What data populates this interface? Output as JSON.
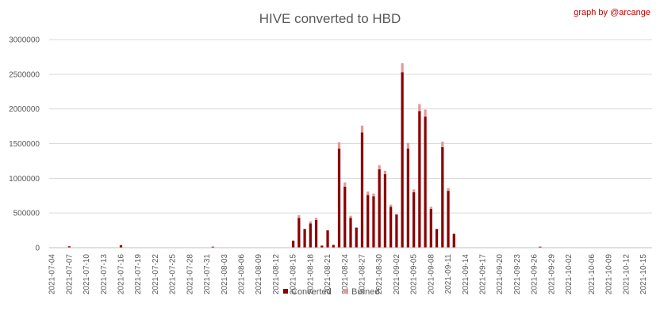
{
  "chart_data": {
    "type": "bar",
    "stacked": true,
    "title": "HIVE converted to HBD",
    "credit": "graph by @arcange",
    "ylim": [
      0,
      3000000
    ],
    "y_ticks": [
      "0",
      "500000",
      "1000000",
      "1500000",
      "2000000",
      "2500000",
      "3000000"
    ],
    "y_tick_values": [
      0,
      500000,
      1000000,
      1500000,
      2000000,
      2500000,
      3000000
    ],
    "grid": true,
    "legend_position": "bottom",
    "start_date": "2021-07-04",
    "x_tick_labels": [
      "2021-07-04",
      "2021-07-07",
      "2021-07-10",
      "2021-07-13",
      "2021-07-16",
      "2021-07-19",
      "2021-07-22",
      "2021-07-25",
      "2021-07-28",
      "2021-07-31",
      "2021-08-03",
      "2021-08-06",
      "2021-08-09",
      "2021-08-12",
      "2021-08-15",
      "2021-08-18",
      "2021-08-21",
      "2021-08-24",
      "2021-08-27",
      "2021-08-30",
      "2021-09-02",
      "2021-09-05",
      "2021-09-08",
      "2021-09-11",
      "2021-09-14",
      "2021-09-17",
      "2021-09-20",
      "2021-09-23",
      "2021-09-26",
      "2021-09-29",
      "2021-10-02",
      "2021-10-06",
      "2021-10-09",
      "2021-10-12",
      "2021-10-15"
    ],
    "series": [
      {
        "name": "Converted",
        "color": "#8b0000",
        "values": [
          3000,
          3000,
          3000,
          20000,
          3000,
          3000,
          3000,
          3000,
          3000,
          3000,
          3000,
          3000,
          35000,
          3000,
          3000,
          3000,
          3000,
          3000,
          3000,
          3000,
          3000,
          3000,
          3000,
          3000,
          3000,
          3000,
          3000,
          3000,
          15000,
          3000,
          3000,
          3000,
          3000,
          3000,
          3000,
          3000,
          3000,
          3000,
          3000,
          3000,
          3000,
          3000,
          100000,
          430000,
          270000,
          350000,
          400000,
          30000,
          250000,
          40000,
          1430000,
          880000,
          430000,
          290000,
          1660000,
          760000,
          740000,
          1130000,
          1060000,
          590000,
          480000,
          2530000,
          1430000,
          800000,
          1970000,
          1890000,
          560000,
          270000,
          1450000,
          820000,
          200000,
          3000,
          3000,
          3000,
          3000,
          3000,
          3000,
          3000,
          3000,
          3000,
          3000,
          3000,
          3000,
          3000,
          3000,
          15000,
          3000,
          3000,
          3000,
          3000,
          3000,
          3000,
          3000,
          3000,
          3000,
          3000,
          3000,
          3000,
          3000,
          3000,
          3000,
          3000,
          3000,
          3000,
          3000
        ]
      },
      {
        "name": "Burned",
        "color": "#e29a9a",
        "values": [
          0,
          0,
          0,
          0,
          0,
          0,
          0,
          0,
          0,
          0,
          0,
          0,
          5000,
          0,
          0,
          0,
          0,
          0,
          0,
          0,
          0,
          0,
          0,
          0,
          0,
          0,
          0,
          0,
          0,
          0,
          0,
          0,
          0,
          0,
          0,
          0,
          0,
          0,
          0,
          0,
          0,
          0,
          0,
          40000,
          0,
          30000,
          30000,
          0,
          0,
          0,
          90000,
          60000,
          30000,
          0,
          100000,
          50000,
          40000,
          60000,
          50000,
          30000,
          0,
          130000,
          80000,
          40000,
          100000,
          100000,
          30000,
          0,
          80000,
          40000,
          0,
          0,
          0,
          0,
          0,
          0,
          0,
          0,
          0,
          0,
          0,
          0,
          0,
          0,
          0,
          0,
          0,
          0,
          0,
          0,
          0,
          0,
          0,
          0,
          0,
          0,
          0,
          0,
          0,
          0,
          0,
          0,
          0,
          0,
          0
        ]
      }
    ]
  }
}
